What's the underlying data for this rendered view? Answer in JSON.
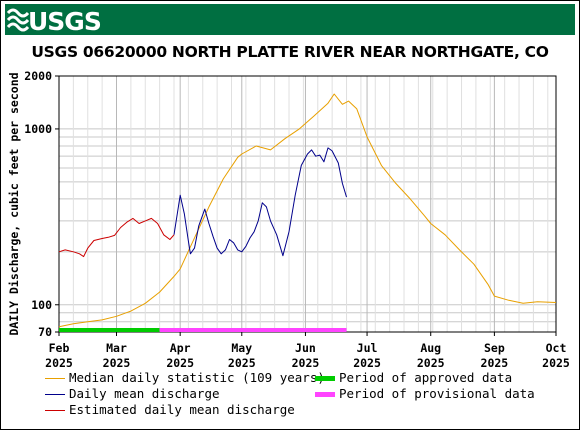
{
  "header": {
    "logo_text": "USGS",
    "logo_color": "#ffffff",
    "banner_color": "#006f41"
  },
  "chart_data": {
    "type": "line",
    "title": "USGS 06620000 NORTH PLATTE RIVER NEAR NORTHGATE, CO",
    "ylabel": "DAILY Discharge, cubic feet per second",
    "xlabel": "",
    "y_scale": "log",
    "ylim": [
      70,
      2000
    ],
    "y_ticks": [
      {
        "value": 70,
        "label": "70"
      },
      {
        "value": 100,
        "label": "100"
      },
      {
        "value": 1000,
        "label": "1000"
      },
      {
        "value": 2000,
        "label": "2000"
      }
    ],
    "x_domain": [
      "2025-02-01",
      "2025-10-01"
    ],
    "x_ticks": [
      {
        "date": "2025-02-01",
        "month": "Feb",
        "year": "2025"
      },
      {
        "date": "2025-03-01",
        "month": "Mar",
        "year": "2025"
      },
      {
        "date": "2025-04-01",
        "month": "Apr",
        "year": "2025"
      },
      {
        "date": "2025-05-01",
        "month": "May",
        "year": "2025"
      },
      {
        "date": "2025-06-01",
        "month": "Jun",
        "year": "2025"
      },
      {
        "date": "2025-07-01",
        "month": "Jul",
        "year": "2025"
      },
      {
        "date": "2025-08-01",
        "month": "Aug",
        "year": "2025"
      },
      {
        "date": "2025-09-01",
        "month": "Sep",
        "year": "2025"
      },
      {
        "date": "2025-10-01",
        "month": "Oct",
        "year": "2025"
      }
    ],
    "grid": true,
    "series": [
      {
        "name": "Median daily statistic (109 years)",
        "color": "#e8a000",
        "points": [
          [
            "2025-02-01",
            75
          ],
          [
            "2025-02-08",
            78
          ],
          [
            "2025-02-15",
            80
          ],
          [
            "2025-02-22",
            82
          ],
          [
            "2025-03-01",
            86
          ],
          [
            "2025-03-08",
            92
          ],
          [
            "2025-03-15",
            102
          ],
          [
            "2025-03-22",
            118
          ],
          [
            "2025-03-29",
            145
          ],
          [
            "2025-04-01",
            160
          ],
          [
            "2025-04-08",
            240
          ],
          [
            "2025-04-15",
            360
          ],
          [
            "2025-04-22",
            520
          ],
          [
            "2025-04-29",
            690
          ],
          [
            "2025-05-01",
            720
          ],
          [
            "2025-05-08",
            800
          ],
          [
            "2025-05-15",
            760
          ],
          [
            "2025-05-22",
            880
          ],
          [
            "2025-05-29",
            1000
          ],
          [
            "2025-06-05",
            1180
          ],
          [
            "2025-06-12",
            1400
          ],
          [
            "2025-06-15",
            1580
          ],
          [
            "2025-06-19",
            1380
          ],
          [
            "2025-06-22",
            1440
          ],
          [
            "2025-06-26",
            1300
          ],
          [
            "2025-07-01",
            900
          ],
          [
            "2025-07-08",
            620
          ],
          [
            "2025-07-15",
            490
          ],
          [
            "2025-07-22",
            400
          ],
          [
            "2025-07-29",
            320
          ],
          [
            "2025-08-01",
            290
          ],
          [
            "2025-08-08",
            250
          ],
          [
            "2025-08-15",
            205
          ],
          [
            "2025-08-22",
            170
          ],
          [
            "2025-08-29",
            130
          ],
          [
            "2025-09-01",
            112
          ],
          [
            "2025-09-08",
            106
          ],
          [
            "2025-09-15",
            102
          ],
          [
            "2025-09-22",
            104
          ],
          [
            "2025-10-01",
            103
          ]
        ]
      },
      {
        "name": "Daily mean discharge",
        "color": "#00008b",
        "points": [
          [
            "2025-03-29",
            250
          ],
          [
            "2025-04-01",
            420
          ],
          [
            "2025-04-03",
            330
          ],
          [
            "2025-04-05",
            230
          ],
          [
            "2025-04-06",
            195
          ],
          [
            "2025-04-08",
            210
          ],
          [
            "2025-04-10",
            280
          ],
          [
            "2025-04-13",
            350
          ],
          [
            "2025-04-15",
            290
          ],
          [
            "2025-04-17",
            245
          ],
          [
            "2025-04-19",
            210
          ],
          [
            "2025-04-21",
            195
          ],
          [
            "2025-04-23",
            205
          ],
          [
            "2025-04-25",
            235
          ],
          [
            "2025-04-27",
            225
          ],
          [
            "2025-04-29",
            205
          ],
          [
            "2025-05-01",
            200
          ],
          [
            "2025-05-03",
            215
          ],
          [
            "2025-05-05",
            240
          ],
          [
            "2025-05-07",
            260
          ],
          [
            "2025-05-09",
            300
          ],
          [
            "2025-05-11",
            380
          ],
          [
            "2025-05-13",
            360
          ],
          [
            "2025-05-15",
            300
          ],
          [
            "2025-05-18",
            250
          ],
          [
            "2025-05-21",
            190
          ],
          [
            "2025-05-24",
            260
          ],
          [
            "2025-05-27",
            420
          ],
          [
            "2025-05-30",
            620
          ],
          [
            "2025-06-02",
            720
          ],
          [
            "2025-06-04",
            760
          ],
          [
            "2025-06-06",
            700
          ],
          [
            "2025-06-08",
            710
          ],
          [
            "2025-06-10",
            650
          ],
          [
            "2025-06-12",
            780
          ],
          [
            "2025-06-14",
            750
          ],
          [
            "2025-06-17",
            640
          ],
          [
            "2025-06-19",
            490
          ],
          [
            "2025-06-21",
            410
          ]
        ]
      },
      {
        "name": "Estimated daily mean discharge",
        "color": "#cc0000",
        "points": [
          [
            "2025-02-01",
            200
          ],
          [
            "2025-02-04",
            205
          ],
          [
            "2025-02-08",
            200
          ],
          [
            "2025-02-11",
            195
          ],
          [
            "2025-02-13",
            188
          ],
          [
            "2025-02-15",
            210
          ],
          [
            "2025-02-18",
            232
          ],
          [
            "2025-02-22",
            238
          ],
          [
            "2025-02-25",
            242
          ],
          [
            "2025-02-28",
            248
          ],
          [
            "2025-03-03",
            275
          ],
          [
            "2025-03-06",
            295
          ],
          [
            "2025-03-09",
            310
          ],
          [
            "2025-03-12",
            290
          ],
          [
            "2025-03-15",
            300
          ],
          [
            "2025-03-18",
            310
          ],
          [
            "2025-03-21",
            290
          ],
          [
            "2025-03-24",
            250
          ],
          [
            "2025-03-27",
            235
          ],
          [
            "2025-03-29",
            250
          ]
        ]
      }
    ],
    "periods": [
      {
        "name": "Period of approved data",
        "color": "#00cc00",
        "start": "2025-02-01",
        "end": "2025-03-22"
      },
      {
        "name": "Period of provisional data",
        "color": "#ff44ff",
        "start": "2025-03-22",
        "end": "2025-06-21"
      }
    ],
    "legend_position": "bottom"
  }
}
